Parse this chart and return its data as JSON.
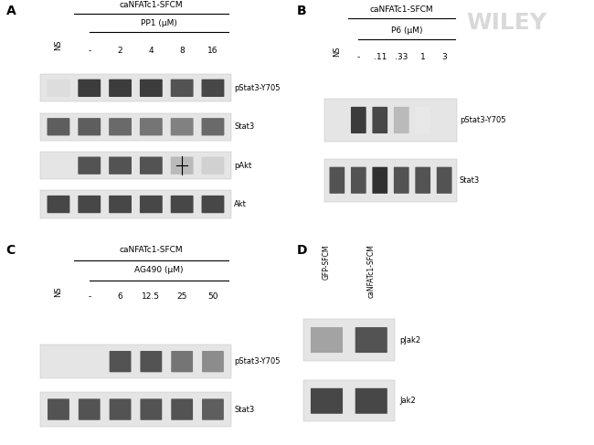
{
  "panel_A": {
    "label": "A",
    "title_line1": "caNFATc1-SFCM",
    "title_line2": "PP1 (μM)",
    "col_labels": [
      "NS",
      "-",
      "2",
      "4",
      "8",
      "16"
    ],
    "rows": [
      "pStat3-Y705",
      "Stat3",
      "pAkt",
      "Akt"
    ],
    "bands": {
      "pStat3-Y705": [
        0.15,
        0.85,
        0.85,
        0.85,
        0.75,
        0.8
      ],
      "Stat3": [
        0.7,
        0.7,
        0.65,
        0.6,
        0.55,
        0.65
      ],
      "pAkt": [
        0.05,
        0.75,
        0.75,
        0.75,
        0.3,
        0.2
      ],
      "Akt": [
        0.8,
        0.8,
        0.8,
        0.8,
        0.8,
        0.8
      ]
    }
  },
  "panel_B": {
    "label": "B",
    "title_line1": "caNFATc1-SFCM",
    "title_line2": "P6 (μM)",
    "col_labels": [
      "NS",
      "-",
      ".11",
      ".33",
      "1",
      "3"
    ],
    "rows": [
      "pStat3-Y705",
      "Stat3"
    ],
    "bands": {
      "pStat3-Y705": [
        0.05,
        0.85,
        0.8,
        0.3,
        0.1,
        0.05
      ],
      "Stat3": [
        0.75,
        0.75,
        0.9,
        0.75,
        0.75,
        0.75
      ]
    }
  },
  "panel_C": {
    "label": "C",
    "title_line1": "caNFATc1-SFCM",
    "title_line2": "AG490 (μM)",
    "col_labels": [
      "NS",
      "-",
      "6",
      "12.5",
      "25",
      "50"
    ],
    "rows": [
      "pStat3-Y705",
      "Stat3"
    ],
    "bands": {
      "pStat3-Y705": [
        0.05,
        0.05,
        0.75,
        0.75,
        0.6,
        0.5
      ],
      "Stat3": [
        0.75,
        0.75,
        0.75,
        0.75,
        0.75,
        0.7
      ]
    }
  },
  "panel_D": {
    "label": "D",
    "col_labels": [
      "GFP-SFCM",
      "caNFATc1-SFCM"
    ],
    "rows": [
      "pJak2",
      "Jak2"
    ],
    "bands": {
      "pJak2": [
        0.4,
        0.75
      ],
      "Jak2": [
        0.8,
        0.8
      ]
    }
  },
  "bg_color": "#f0f0f0",
  "band_color": "#1a1a1a",
  "light_band_color": "#888888",
  "wiley_text": "WILEY",
  "wiley_color": "#c0c0c0"
}
